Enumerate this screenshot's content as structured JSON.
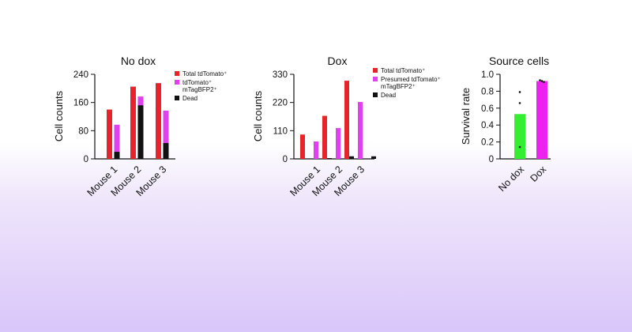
{
  "chart_data": [
    {
      "type": "bar",
      "title": "No dox",
      "ylabel": "Cell counts",
      "xlabel": "",
      "ylim": [
        0,
        240
      ],
      "yticks": [
        "0",
        "80",
        "160",
        "240"
      ],
      "categories": [
        "Mouse 1",
        "Mouse 2",
        "Mouse 3"
      ],
      "series": [
        {
          "name": "Total tdTomato⁺",
          "color": "#e8232a",
          "values": [
            140,
            205,
            215
          ]
        },
        {
          "name": "tdTomato⁺ mTagBFP2⁺",
          "color": "#e040f0",
          "values": [
            97,
            177,
            137
          ]
        },
        {
          "name": "Dead",
          "color": "#111111",
          "values": [
            20,
            152,
            45
          ],
          "overlay_on": 1
        }
      ],
      "legend": [
        "Total tdTomato⁺",
        "tdTomato⁺",
        "mTagBFP2⁺",
        "Dead"
      ],
      "legend_position": "top-right"
    },
    {
      "type": "bar",
      "title": "Dox",
      "ylabel": "Cell counts",
      "xlabel": "",
      "ylim": [
        0,
        330
      ],
      "yticks": [
        "0",
        "110",
        "220",
        "330"
      ],
      "categories": [
        "Mouse 1",
        "Mouse 2",
        "Mouse 3"
      ],
      "series": [
        {
          "name": "Total tdTomato⁺",
          "color": "#e8232a",
          "values": [
            95,
            168,
            305
          ]
        },
        {
          "name": "Presumed tdTomato⁺ mTagBFP2⁺",
          "color": "#e040f0",
          "values": [
            68,
            120,
            222
          ]
        },
        {
          "name": "Dead",
          "color": "#111111",
          "values": [
            3,
            10,
            10
          ]
        }
      ],
      "legend": [
        "Total tdTomato⁺",
        "Presumed tdTomato⁺",
        "mTagBFP2⁺",
        "Dead"
      ],
      "legend_position": "top-right"
    },
    {
      "type": "bar",
      "title": "Source cells",
      "ylabel": "Survival rate",
      "xlabel": "",
      "ylim": [
        0,
        1.0
      ],
      "yticks": [
        "0",
        "0.2",
        "0.4",
        "0.6",
        "0.8",
        "1.0"
      ],
      "categories": [
        "No dox",
        "Dox"
      ],
      "values": [
        0.53,
        0.92
      ],
      "colors": [
        "#33ee33",
        "#ee22ee"
      ],
      "points": [
        [
          0.79,
          0.66,
          0.14
        ],
        [
          0.93,
          0.92,
          0.91
        ]
      ]
    }
  ]
}
